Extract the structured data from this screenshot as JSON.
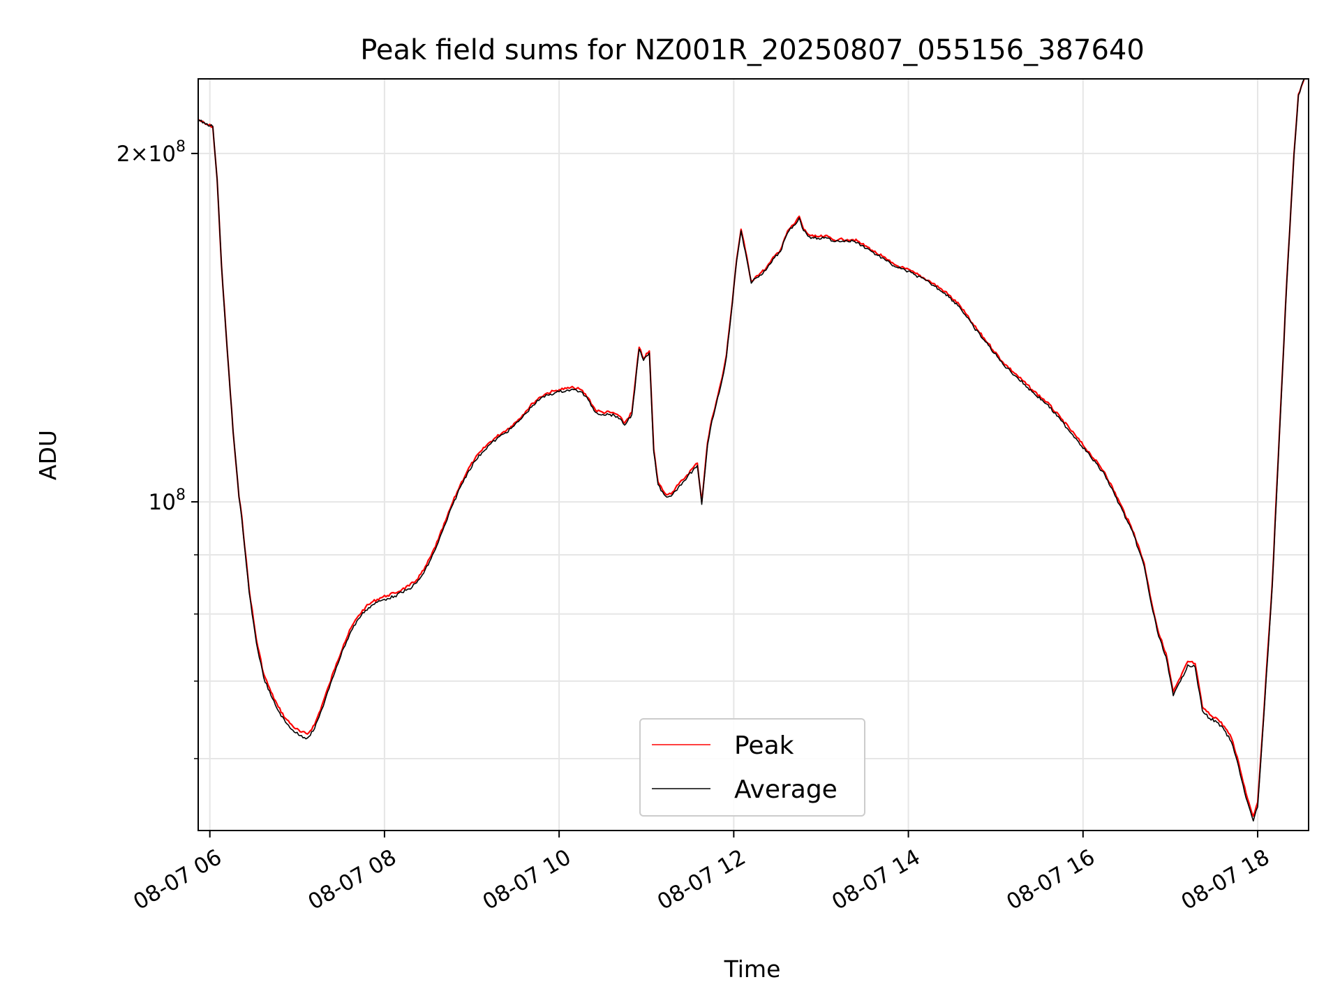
{
  "chart_data": {
    "type": "line",
    "title": "Peak field sums for NZ001R_20250807_055156_387640",
    "xlabel": "Time",
    "ylabel": "ADU",
    "x_axis_kind": "datetime",
    "y_scale": "log",
    "xlim": [
      "2025-08-07 05:52",
      "2025-08-07 18:35"
    ],
    "ylim": [
      52000000,
      232000000
    ],
    "grid": true,
    "legend_position": "lower center",
    "x_tick_labels": [
      "08-07 06",
      "08-07 08",
      "08-07 10",
      "08-07 12",
      "08-07 14",
      "08-07 16",
      "08-07 18"
    ],
    "y_tick_labels": [
      {
        "value": 100000000,
        "mantissa": "",
        "base": "10",
        "exponent": "8"
      },
      {
        "value": 200000000,
        "mantissa": "2",
        "base": "10",
        "exponent": "8"
      }
    ],
    "series": [
      {
        "name": "Peak",
        "color": "#ff0000",
        "x": [
          "05:52",
          "05:57",
          "06:02",
          "06:05",
          "06:08",
          "06:12",
          "06:16",
          "06:20",
          "06:22",
          "06:27",
          "06:32",
          "06:37",
          "06:42",
          "06:47",
          "06:52",
          "06:57",
          "07:02",
          "07:07",
          "07:12",
          "07:17",
          "07:22",
          "07:27",
          "07:32",
          "07:37",
          "07:42",
          "07:47",
          "07:52",
          "07:57",
          "08:02",
          "08:07",
          "08:12",
          "08:17",
          "08:22",
          "08:27",
          "08:32",
          "08:37",
          "08:42",
          "08:47",
          "08:52",
          "08:57",
          "09:02",
          "09:07",
          "09:12",
          "09:17",
          "09:22",
          "09:27",
          "09:32",
          "09:37",
          "09:42",
          "09:47",
          "09:52",
          "09:57",
          "10:00",
          "10:05",
          "10:10",
          "10:15",
          "10:20",
          "10:25",
          "10:30",
          "10:35",
          "10:40",
          "10:45",
          "10:50",
          "10:55",
          "10:58",
          "11:02",
          "11:05",
          "11:08",
          "11:12",
          "11:15",
          "11:18",
          "11:22",
          "11:25",
          "11:28",
          "11:32",
          "11:35",
          "11:38",
          "11:42",
          "11:45",
          "11:48",
          "11:52",
          "11:55",
          "11:58",
          "12:02",
          "12:05",
          "12:08",
          "12:12",
          "12:15",
          "12:18",
          "12:22",
          "12:25",
          "12:28",
          "12:32",
          "12:35",
          "12:38",
          "12:42",
          "12:45",
          "12:48",
          "12:52",
          "12:55",
          "12:58",
          "13:02",
          "13:05",
          "13:08",
          "13:12",
          "13:15",
          "13:18",
          "13:22",
          "13:25",
          "13:28",
          "13:32",
          "13:35",
          "13:38",
          "13:42",
          "13:45",
          "13:48",
          "13:52",
          "13:55",
          "13:58",
          "14:05",
          "14:15",
          "14:25",
          "14:35",
          "14:45",
          "14:55",
          "15:05",
          "15:15",
          "15:25",
          "15:35",
          "15:45",
          "15:55",
          "16:05",
          "16:15",
          "16:25",
          "16:35",
          "16:42",
          "16:47",
          "16:52",
          "16:57",
          "17:02",
          "17:07",
          "17:12",
          "17:17",
          "17:22",
          "17:27",
          "17:32",
          "17:37",
          "17:42",
          "17:47",
          "17:52",
          "17:57",
          "18:00",
          "18:05",
          "18:10",
          "18:15",
          "18:20",
          "18:25",
          "18:28",
          "18:32"
        ],
        "values": [
          214000000,
          212000000,
          211000000,
          190000000,
          160000000,
          135000000,
          115000000,
          101000000,
          97000000,
          84000000,
          76000000,
          71000000,
          68500000,
          66500000,
          65000000,
          64000000,
          63300000,
          63000000,
          64200000,
          66700000,
          69500000,
          72500000,
          75300000,
          77800000,
          79700000,
          81100000,
          82000000,
          82600000,
          83000000,
          83400000,
          84000000,
          84600000,
          85600000,
          87300000,
          89800000,
          92800000,
          96300000,
          100000000,
          103400000,
          106400000,
          108900000,
          110800000,
          112500000,
          113800000,
          115000000,
          116200000,
          117800000,
          119700000,
          121700000,
          123200000,
          124200000,
          124700000,
          125000000,
          125300000,
          125500000,
          125000000,
          123000000,
          120000000,
          119500000,
          119500000,
          119000000,
          117000000,
          119500000,
          136000000,
          133000000,
          135000000,
          111000000,
          104000000,
          102000000,
          101500000,
          102000000,
          103500000,
          104500000,
          105500000,
          107000000,
          108000000,
          100000000,
          112500000,
          118000000,
          122000000,
          128000000,
          134000000,
          145000000,
          162000000,
          172000000,
          165000000,
          155000000,
          156500000,
          157500000,
          159000000,
          161000000,
          163000000,
          165000000,
          169000000,
          172000000,
          174000000,
          176500000,
          172000000,
          170000000,
          169500000,
          169500000,
          169500000,
          169500000,
          168500000,
          168500000,
          168500000,
          168500000,
          168500000,
          168000000,
          167000000,
          166000000,
          165000000,
          164000000,
          163000000,
          162000000,
          161000000,
          160000000,
          159500000,
          159000000,
          157500000,
          155000000,
          152000000,
          148000000,
          142000000,
          137000000,
          132000000,
          128500000,
          125000000,
          122000000,
          118000000,
          114000000,
          110000000,
          106000000,
          100000000,
          94000000,
          88500000,
          82000000,
          77000000,
          74000000,
          68500000,
          70500000,
          72800000,
          72500000,
          66500000,
          65500000,
          65000000,
          64000000,
          62500000,
          59500000,
          56000000,
          53500000,
          55000000,
          68000000,
          85000000,
          115000000,
          155000000,
          200000000,
          225000000,
          232000000
        ]
      },
      {
        "name": "Average",
        "color": "#000000",
        "x": [
          "05:52",
          "05:57",
          "06:02",
          "06:05",
          "06:08",
          "06:12",
          "06:16",
          "06:20",
          "06:22",
          "06:27",
          "06:32",
          "06:37",
          "06:42",
          "06:47",
          "06:52",
          "06:57",
          "07:02",
          "07:07",
          "07:12",
          "07:17",
          "07:22",
          "07:27",
          "07:32",
          "07:37",
          "07:42",
          "07:47",
          "07:52",
          "07:57",
          "08:02",
          "08:07",
          "08:12",
          "08:17",
          "08:22",
          "08:27",
          "08:32",
          "08:37",
          "08:42",
          "08:47",
          "08:52",
          "08:57",
          "09:02",
          "09:07",
          "09:12",
          "09:17",
          "09:22",
          "09:27",
          "09:32",
          "09:37",
          "09:42",
          "09:47",
          "09:52",
          "09:57",
          "10:00",
          "10:05",
          "10:10",
          "10:15",
          "10:20",
          "10:25",
          "10:30",
          "10:35",
          "10:40",
          "10:45",
          "10:50",
          "10:55",
          "10:58",
          "11:02",
          "11:05",
          "11:08",
          "11:12",
          "11:15",
          "11:18",
          "11:22",
          "11:25",
          "11:28",
          "11:32",
          "11:35",
          "11:38",
          "11:42",
          "11:45",
          "11:48",
          "11:52",
          "11:55",
          "11:58",
          "12:02",
          "12:05",
          "12:08",
          "12:12",
          "12:15",
          "12:18",
          "12:22",
          "12:25",
          "12:28",
          "12:32",
          "12:35",
          "12:38",
          "12:42",
          "12:45",
          "12:48",
          "12:52",
          "12:55",
          "12:58",
          "13:02",
          "13:05",
          "13:08",
          "13:12",
          "13:15",
          "13:18",
          "13:22",
          "13:25",
          "13:28",
          "13:32",
          "13:35",
          "13:38",
          "13:42",
          "13:45",
          "13:48",
          "13:52",
          "13:55",
          "13:58",
          "14:05",
          "14:15",
          "14:25",
          "14:35",
          "14:45",
          "14:55",
          "15:05",
          "15:15",
          "15:25",
          "15:35",
          "15:45",
          "15:55",
          "16:05",
          "16:15",
          "16:25",
          "16:35",
          "16:42",
          "16:47",
          "16:52",
          "16:57",
          "17:02",
          "17:07",
          "17:12",
          "17:17",
          "17:22",
          "17:27",
          "17:32",
          "17:37",
          "17:42",
          "17:47",
          "17:52",
          "17:57",
          "18:00",
          "18:05",
          "18:10",
          "18:15",
          "18:20",
          "18:25",
          "18:28",
          "18:32"
        ],
        "values": [
          214000000,
          212000000,
          211000000,
          190000000,
          160000000,
          135000000,
          115000000,
          101000000,
          96500000,
          83500000,
          75500000,
          70500000,
          68000000,
          66000000,
          64500000,
          63500000,
          62800000,
          62500000,
          63700000,
          66200000,
          69000000,
          72000000,
          74800000,
          77300000,
          79200000,
          80600000,
          81500000,
          82100000,
          82500000,
          82900000,
          83500000,
          84100000,
          85100000,
          86800000,
          89300000,
          92300000,
          95800000,
          99500000,
          102900000,
          105900000,
          108400000,
          110300000,
          112000000,
          113300000,
          114500000,
          115700000,
          117300000,
          119200000,
          121200000,
          122700000,
          123700000,
          124200000,
          124500000,
          124800000,
          125000000,
          124500000,
          122500000,
          119500000,
          119000000,
          119000000,
          118500000,
          116500000,
          119000000,
          135500000,
          132500000,
          134500000,
          110500000,
          103500000,
          101500000,
          101000000,
          101500000,
          103000000,
          104000000,
          105000000,
          106500000,
          107500000,
          99500000,
          112000000,
          117500000,
          121500000,
          127500000,
          133500000,
          144500000,
          161500000,
          171500000,
          164500000,
          154500000,
          156000000,
          157000000,
          158500000,
          160500000,
          162500000,
          164500000,
          168500000,
          171500000,
          173500000,
          176000000,
          171500000,
          169500000,
          169000000,
          169000000,
          169000000,
          169000000,
          168000000,
          168000000,
          168000000,
          168000000,
          168000000,
          167500000,
          166500000,
          165500000,
          164500000,
          163500000,
          162500000,
          161500000,
          160500000,
          159500000,
          159000000,
          158500000,
          157000000,
          154500000,
          151500000,
          147500000,
          141500000,
          136500000,
          131500000,
          128000000,
          124500000,
          121500000,
          117500000,
          113500000,
          109500000,
          105500000,
          99500000,
          93500000,
          88000000,
          81500000,
          76500000,
          73500000,
          68000000,
          70000000,
          72300000,
          72000000,
          66000000,
          65000000,
          64500000,
          63500000,
          62000000,
          59000000,
          55500000,
          53000000,
          54500000,
          67500000,
          84500000,
          114500000,
          154500000,
          199500000,
          224500000,
          232000000
        ]
      }
    ]
  }
}
